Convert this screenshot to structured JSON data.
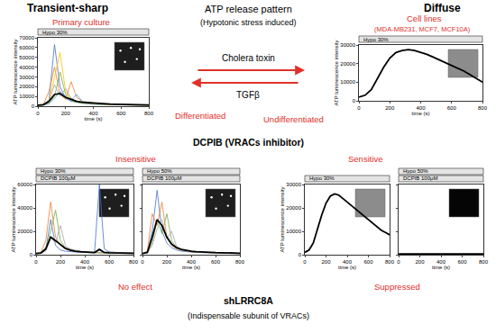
{
  "header": {
    "title": "ATP release pattern",
    "subtitle": "(Hypotonic stress induced)"
  },
  "patterns": {
    "left": "Transient-sharp",
    "right": "Diffuse"
  },
  "sources": {
    "left": "Primary culture",
    "right": "Cell lines",
    "right_detail": "(MDA-MB231, MCF7, MCF10A)"
  },
  "transitions": {
    "forward": "Cholera toxin",
    "backward": "TGFβ",
    "left_state": "Differentiated",
    "right_state": "Undifferentiated"
  },
  "inhibitor": {
    "label": "DCPIB (VRACs inhibitor)",
    "left": "Insensitive",
    "right": "Sensitive"
  },
  "knockdown": {
    "label": "shLRRC8A",
    "detail": "(Indispensable subunit of VRACs)",
    "left": "No effect",
    "right": "Suppressed"
  },
  "chart_data": [
    {
      "type": "line",
      "x_label": "time (s)",
      "y_label": "ATP luminescence intensity",
      "bars": [
        "Hypo 30%"
      ],
      "grid": false,
      "x": [
        0,
        40,
        80,
        120,
        160,
        200,
        240,
        280,
        320,
        360,
        400,
        440,
        480,
        520,
        560,
        600,
        640,
        680,
        720,
        760,
        800
      ],
      "xlim": [
        0,
        800
      ],
      "xticks": [
        0,
        200,
        400,
        600,
        800
      ],
      "ylim": [
        0,
        70000
      ],
      "yticks": [
        0,
        10000,
        20000,
        30000,
        40000,
        50000,
        60000,
        70000
      ],
      "series": [
        {
          "color": "#4472c4",
          "values": [
            1000,
            1500,
            6000,
            63000,
            20000,
            8000,
            5000,
            4000,
            3000,
            2500,
            2000,
            2000,
            1800,
            1500,
            1500,
            1400,
            1300,
            1200,
            1200,
            1100,
            1000
          ]
        },
        {
          "color": "#ed7d31",
          "values": [
            1000,
            2000,
            15000,
            40000,
            12000,
            7000,
            25000,
            9000,
            5000,
            4000,
            3000,
            2500,
            2000,
            2000,
            1800,
            1500,
            1500,
            1400,
            1300,
            1200,
            1200
          ]
        },
        {
          "color": "#70ad47",
          "values": [
            800,
            1200,
            3000,
            10000,
            35000,
            12000,
            6000,
            4000,
            3000,
            2500,
            2000,
            1800,
            1500,
            1500,
            1400,
            1300,
            1200,
            1100,
            1000,
            1000,
            900
          ]
        },
        {
          "color": "#a5a5a5",
          "values": [
            1200,
            1500,
            5000,
            22000,
            10000,
            18000,
            8000,
            5000,
            4000,
            3000,
            2500,
            2000,
            1800,
            1700,
            1600,
            1500,
            1400,
            1300,
            1200,
            1100,
            1100
          ]
        },
        {
          "color": "#ffc000",
          "values": [
            900,
            1200,
            4000,
            30000,
            55000,
            15000,
            7000,
            5000,
            4000,
            3500,
            3000,
            2500,
            2000,
            1800,
            1600,
            1500,
            1400,
            1300,
            1200,
            1100,
            1000
          ]
        },
        {
          "color": "#5b9bd5",
          "values": [
            1000,
            1300,
            2500,
            8000,
            15000,
            10000,
            6000,
            12000,
            5000,
            4000,
            3000,
            2500,
            2200,
            2000,
            1800,
            1600,
            1500,
            1400,
            1300,
            1200,
            1100
          ]
        },
        {
          "color": "#000000",
          "values": [
            1000,
            1500,
            5000,
            12000,
            13000,
            9000,
            7000,
            5000,
            4000,
            3500,
            3000,
            2600,
            2300,
            2100,
            1900,
            1700,
            1600,
            1500,
            1400,
            1300,
            1200
          ]
        }
      ]
    },
    {
      "type": "line",
      "x_label": "time (s)",
      "y_label": "ATP luminescence intensity",
      "bars": [
        "Hypo 30%"
      ],
      "grid": false,
      "x": [
        0,
        40,
        80,
        120,
        160,
        200,
        240,
        280,
        320,
        360,
        400,
        440,
        480,
        520,
        560,
        600,
        640,
        680,
        720,
        760,
        800
      ],
      "xlim": [
        0,
        800
      ],
      "xticks": [
        0,
        200,
        400,
        600,
        800
      ],
      "ylim": [
        0,
        30000
      ],
      "yticks": [
        0,
        10000,
        20000,
        30000
      ],
      "series": [
        {
          "color": "#000000",
          "values": [
            2000,
            3000,
            6000,
            12000,
            18000,
            23000,
            26000,
            27000,
            27500,
            27000,
            26000,
            25000,
            23500,
            22000,
            20500,
            19000,
            17500,
            16000,
            14000,
            12000,
            10000
          ]
        }
      ]
    },
    {
      "type": "line",
      "x_label": "time (s)",
      "y_label": "ATP luminescence intensity",
      "bars": [
        "Hypo 30%",
        "DCPIB 100μM"
      ],
      "grid": false,
      "x": [
        0,
        40,
        80,
        120,
        160,
        200,
        240,
        280,
        320,
        360,
        400,
        440,
        480,
        520,
        560,
        600,
        640,
        680,
        720,
        760,
        800
      ],
      "xlim": [
        0,
        800
      ],
      "xticks": [
        0,
        200,
        400,
        600,
        800
      ],
      "ylim": [
        0,
        60000
      ],
      "yticks": [
        0,
        20000,
        40000,
        60000
      ],
      "series": [
        {
          "color": "#4472c4",
          "values": [
            1000,
            1500,
            4000,
            30000,
            8000,
            4000,
            3000,
            2500,
            2000,
            2000,
            1800,
            1800,
            1700,
            60000,
            5000,
            2500,
            2000,
            1800,
            1600,
            1500,
            1400
          ]
        },
        {
          "color": "#ed7d31",
          "values": [
            1000,
            2000,
            12000,
            45000,
            15000,
            8000,
            5000,
            3500,
            3000,
            2500,
            2200,
            2000,
            1800,
            1700,
            1600,
            1500,
            1400,
            1300,
            1200,
            1200,
            1100
          ]
        },
        {
          "color": "#70ad47",
          "values": [
            800,
            1200,
            6000,
            20000,
            38000,
            12000,
            6000,
            4000,
            3000,
            2500,
            2000,
            1800,
            1600,
            1500,
            1400,
            1300,
            1200,
            1100,
            1000,
            1000,
            900
          ]
        },
        {
          "color": "#a5a5a5",
          "values": [
            1000,
            1300,
            3000,
            15000,
            10000,
            25000,
            8000,
            5000,
            4000,
            3000,
            2500,
            2200,
            2000,
            1800,
            1600,
            1500,
            1400,
            1300,
            1200,
            1100,
            1000
          ]
        },
        {
          "color": "#000000",
          "values": [
            1000,
            1500,
            5000,
            15000,
            12000,
            9000,
            5500,
            4000,
            3000,
            2600,
            2200,
            2000,
            1900,
            4500,
            2000,
            1700,
            1600,
            1500,
            1400,
            1300,
            1200
          ]
        }
      ]
    },
    {
      "type": "line",
      "x_label": "time (s)",
      "bars": [
        "Hypo 50%",
        "DCPIB 100μM"
      ],
      "grid": false,
      "tick_labels": "x",
      "x": [
        0,
        40,
        80,
        120,
        160,
        200,
        240,
        280,
        320,
        360,
        400,
        440,
        480,
        520,
        560,
        600,
        640,
        680,
        720,
        760,
        800
      ],
      "xlim": [
        0,
        800
      ],
      "xticks": [
        0,
        200,
        400,
        600,
        800
      ],
      "ylim": [
        0,
        60000
      ],
      "yticks": [
        0,
        20000,
        40000,
        60000
      ],
      "series": [
        {
          "color": "#4472c4",
          "values": [
            1000,
            2000,
            20000,
            55000,
            20000,
            10000,
            6000,
            4000,
            3000,
            2500,
            2200,
            2000,
            1800,
            1700,
            1600,
            1500,
            1400,
            1300,
            1200,
            1100,
            1000
          ]
        },
        {
          "color": "#ed7d31",
          "values": [
            1000,
            3000,
            35000,
            25000,
            45000,
            15000,
            8000,
            5000,
            4000,
            3000,
            2500,
            2200,
            2000,
            1800,
            1700,
            1600,
            1500,
            1400,
            1300,
            1200,
            1100
          ]
        },
        {
          "color": "#70ad47",
          "values": [
            900,
            1500,
            10000,
            30000,
            18000,
            35000,
            12000,
            6000,
            4000,
            3000,
            2500,
            2000,
            1800,
            1700,
            1600,
            1500,
            1400,
            1300,
            1200,
            1100,
            1000
          ]
        },
        {
          "color": "#a5a5a5",
          "values": [
            1000,
            1800,
            8000,
            22000,
            30000,
            14000,
            20000,
            7000,
            4000,
            3000,
            2500,
            2200,
            2000,
            1800,
            1600,
            1500,
            1400,
            1300,
            1200,
            1100,
            1000
          ]
        },
        {
          "color": "#000000",
          "values": [
            1000,
            2000,
            15000,
            30000,
            25000,
            15000,
            9000,
            6000,
            4500,
            3500,
            3000,
            2600,
            2300,
            2100,
            1900,
            1800,
            1700,
            1600,
            1500,
            1400,
            1300
          ]
        }
      ]
    },
    {
      "type": "line",
      "x_label": "time (s)",
      "y_label": "ATP luminescence intensity",
      "bars": [
        "Hypo 30%"
      ],
      "grid": false,
      "x": [
        0,
        40,
        80,
        120,
        160,
        200,
        240,
        280,
        320,
        360,
        400,
        440,
        480,
        520,
        560,
        600,
        640,
        680,
        720,
        760,
        800
      ],
      "xlim": [
        0,
        800
      ],
      "xticks": [
        0,
        200,
        400,
        600,
        800
      ],
      "ylim": [
        0,
        30000
      ],
      "yticks": [
        0,
        10000,
        20000,
        30000
      ],
      "series": [
        {
          "color": "#000000",
          "values": [
            1000,
            2000,
            5000,
            11000,
            17000,
            22000,
            25000,
            26000,
            25500,
            24000,
            22500,
            21000,
            19500,
            18000,
            16500,
            15000,
            13500,
            12000,
            10500,
            9500,
            8500
          ]
        }
      ]
    },
    {
      "type": "line",
      "x_label": "time (s)",
      "bars": [
        "Hypo 50%",
        "DCPIB 100μM"
      ],
      "grid": false,
      "tick_labels": "x",
      "x": [
        0,
        40,
        80,
        120,
        160,
        200,
        240,
        280,
        320,
        360,
        400,
        440,
        480,
        520,
        560,
        600,
        640,
        680,
        720,
        760,
        800
      ],
      "xlim": [
        0,
        800
      ],
      "xticks": [
        0,
        200,
        400,
        600,
        800
      ],
      "ylim": [
        0,
        30000
      ],
      "yticks": [
        0,
        10000,
        20000,
        30000
      ],
      "series": [
        {
          "color": "#000000",
          "values": [
            300,
            300,
            300,
            300,
            300,
            300,
            300,
            300,
            300,
            300,
            300,
            300,
            300,
            300,
            300,
            300,
            300,
            300,
            300,
            300,
            300
          ]
        }
      ]
    }
  ]
}
